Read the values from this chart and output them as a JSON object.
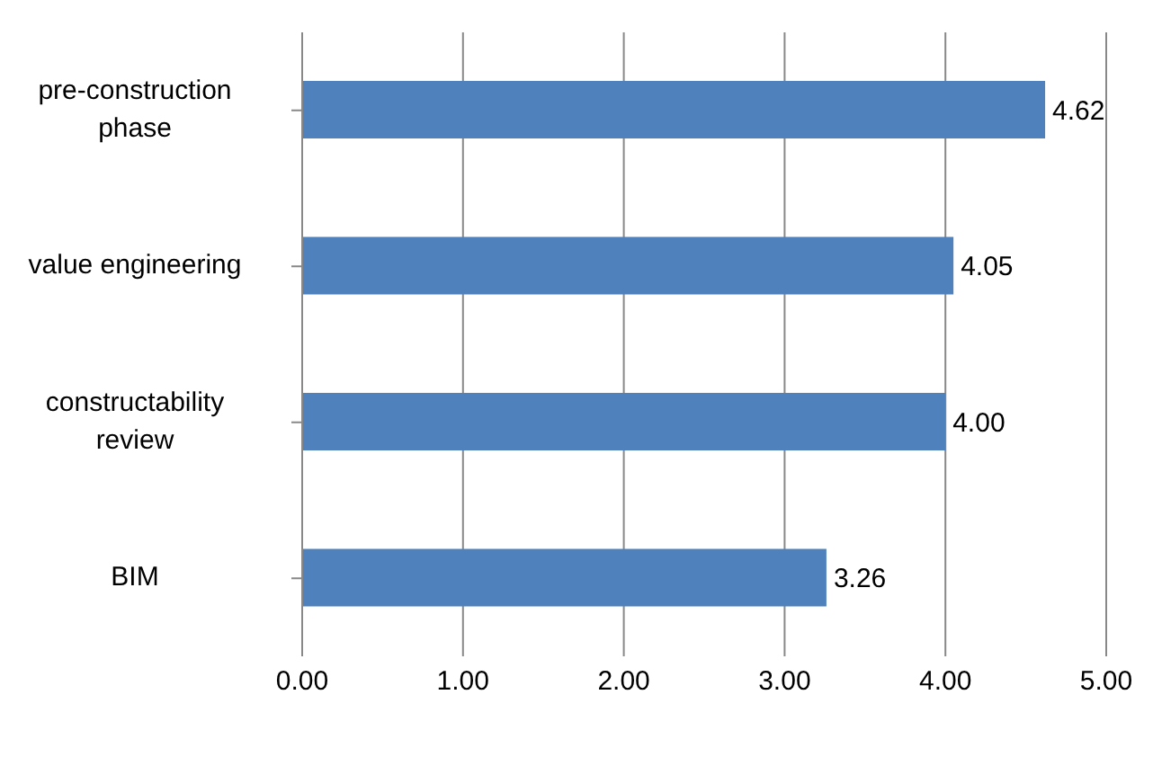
{
  "chart_data": {
    "type": "bar",
    "orientation": "horizontal",
    "categories": [
      "pre-construction phase",
      "value engineering",
      "constructability review",
      "BIM"
    ],
    "values": [
      4.62,
      4.05,
      4.0,
      3.26
    ],
    "value_labels": [
      "4.62",
      "4.05",
      "4.00",
      "3.26"
    ],
    "color": "#4f81bd",
    "xlim": [
      0,
      5
    ],
    "xticks": [
      {
        "value": 0,
        "label": "0.00"
      },
      {
        "value": 1,
        "label": "1.00"
      },
      {
        "value": 2,
        "label": "2.00"
      },
      {
        "value": 3,
        "label": "3.00"
      },
      {
        "value": 4,
        "label": "4.00"
      },
      {
        "value": 5,
        "label": "5.00"
      }
    ],
    "grid": "x",
    "legend": false
  }
}
